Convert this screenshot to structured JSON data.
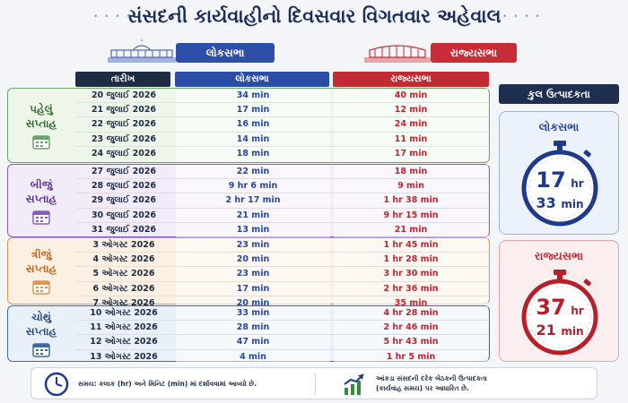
{
  "title": "સંસદની કાર્યવાહીનો દિવસવાર વિગતવાર અહેવાલ",
  "houses": {
    "lok_sabha": "લોકસભા",
    "rajya_sabha": "રાજ્યસભા"
  },
  "table_headers": {
    "date": "તારીખ",
    "lok_sabha": "લોકસભા",
    "rajya_sabha": "રાજ્યસભા"
  },
  "weeks": [
    {
      "label_line1": "પહેલું",
      "label_line2": "સપ્તાહ",
      "rows": [
        {
          "date": "20 જુલાઈ 2026",
          "ls": "34 min",
          "rs": "40 min"
        },
        {
          "date": "21 જુલાઈ 2026",
          "ls": "17 min",
          "rs": "12 min"
        },
        {
          "date": "22 જુલાઈ 2026",
          "ls": "16 min",
          "rs": "24 min"
        },
        {
          "date": "23 જુલાઈ 2026",
          "ls": "14 min",
          "rs": "11 min"
        },
        {
          "date": "24 જુલાઈ 2026",
          "ls": "18 min",
          "rs": "17 min"
        }
      ]
    },
    {
      "label_line1": "બીજું",
      "label_line2": "સપ્તાહ",
      "rows": [
        {
          "date": "27 જુલાઈ 2026",
          "ls": "22 min",
          "rs": "18 min"
        },
        {
          "date": "28 જુલાઈ 2026",
          "ls": "9 hr 6 min",
          "rs": "9 min"
        },
        {
          "date": "29 જુલાઈ 2026",
          "ls": "2 hr 17 min",
          "rs": "1 hr 38 min"
        },
        {
          "date": "30 જુલાઈ 2026",
          "ls": "21 min",
          "rs": "9 hr 15 min"
        },
        {
          "date": "31 જુલાઈ 2026",
          "ls": "13 min",
          "rs": "21 min"
        }
      ]
    },
    {
      "label_line1": "ત્રીજું",
      "label_line2": "સપ્તાહ",
      "rows": [
        {
          "date": "3 ઓગસ્ટ 2026",
          "ls": "23 min",
          "rs": "1 hr 45 min"
        },
        {
          "date": "4 ઓગસ્ટ 2026",
          "ls": "20 min",
          "rs": "1 hr 28 min"
        },
        {
          "date": "5 ઓગસ્ટ 2026",
          "ls": "23 min",
          "rs": "3 hr 30 min"
        },
        {
          "date": "6 ઓગસ્ટ 2026",
          "ls": "17 min",
          "rs": "2 hr 36 min"
        },
        {
          "date": "7 ઓગસ્ટ 2026",
          "ls": "20 min",
          "rs": "35 min"
        }
      ]
    },
    {
      "label_line1": "ચોથું",
      "label_line2": "સપ્તાહ",
      "rows": [
        {
          "date": "10 ઓગસ્ટ 2026",
          "ls": "33 min",
          "rs": "4 hr 28 min"
        },
        {
          "date": "11 ઓગસ્ટ 2026",
          "ls": "28 min",
          "rs": "2 hr 46 min"
        },
        {
          "date": "12 ઓગસ્ટ 2026",
          "ls": "47 min",
          "rs": "5 hr 43 min"
        },
        {
          "date": "13 ઓગસ્ટ 2026",
          "ls": "4 min",
          "rs": "1 hr 5 min"
        }
      ]
    }
  ],
  "productivity": {
    "header": "કુલ ઉત્પાદકતા",
    "lok_sabha": {
      "label": "લોકસભા",
      "hours": "17",
      "hr_unit": "hr",
      "minutes": "33",
      "min_unit": "min"
    },
    "rajya_sabha": {
      "label": "રાજ્યસભા",
      "hours": "37",
      "hr_unit": "hr",
      "minutes": "21",
      "min_unit": "min"
    }
  },
  "footer": {
    "note_left": "સમય: કલાક (hr) અને મિનિટ (min) માં દર્શાવવામાં આવ્યો છે.",
    "note_right_line1": "આંકડા સંસદની દરેક બેઠકની ઉત્પાદકતા",
    "note_right_line2": "(કાર્યવાહ સમય) પર આધારિત છે."
  },
  "colors": {
    "lok_sabha": "#2c4da5",
    "rajya_sabha": "#c22b33",
    "week1": "#6aa66a",
    "week2": "#8a5bbf",
    "week3": "#e2944a",
    "week4": "#3e6ca0"
  },
  "icons": [
    "parliament-building-icon",
    "calendar-icon",
    "stopwatch-icon",
    "clock-icon",
    "growth-chart-icon"
  ]
}
